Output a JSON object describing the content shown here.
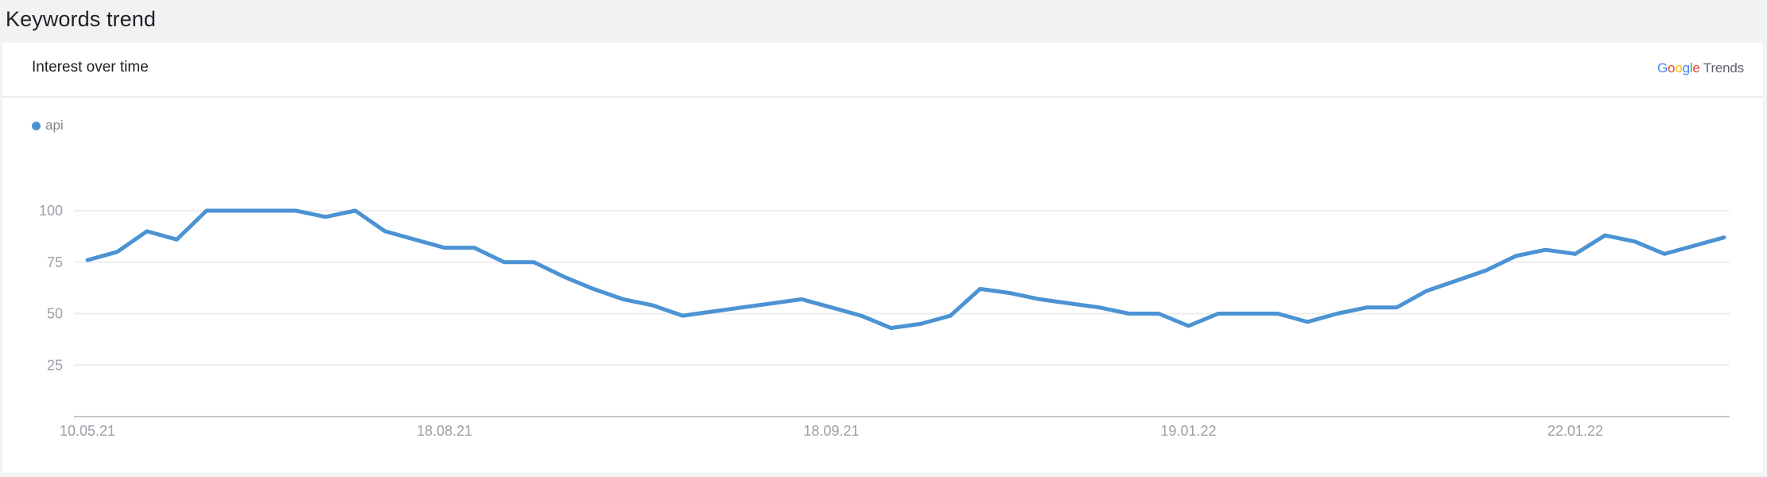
{
  "page_title": "Keywords trend",
  "card": {
    "title": "Interest over time",
    "brand": {
      "letters": [
        "G",
        "o",
        "o",
        "g",
        "l",
        "e"
      ],
      "word": "Trends"
    }
  },
  "colors": {
    "series": "#4b93d3",
    "grid": "#eeeeee",
    "axis": "#c7c7c7",
    "tick": "#9aa0a6"
  },
  "chart_data": {
    "type": "line",
    "title": "",
    "xlabel": "",
    "ylabel": "",
    "ylim": [
      0,
      100
    ],
    "yticks": [
      25,
      50,
      75,
      100
    ],
    "xtick_labels": [
      "10.05.21",
      "18.08.21",
      "18.09.21",
      "19.01.22",
      "22.01.22"
    ],
    "xtick_index": [
      0,
      12,
      25,
      37,
      50
    ],
    "grid": true,
    "legend_position": "top-left",
    "series": [
      {
        "name": "api",
        "values": [
          76,
          80,
          90,
          86,
          100,
          100,
          100,
          100,
          97,
          100,
          90,
          86,
          82,
          82,
          75,
          75,
          68,
          62,
          57,
          54,
          49,
          51,
          53,
          55,
          57,
          53,
          49,
          43,
          45,
          49,
          62,
          60,
          57,
          55,
          53,
          50,
          50,
          44,
          50,
          50,
          50,
          46,
          50,
          53,
          53,
          61,
          66,
          71,
          78,
          81,
          79,
          88,
          85,
          79,
          83,
          87
        ]
      }
    ]
  }
}
